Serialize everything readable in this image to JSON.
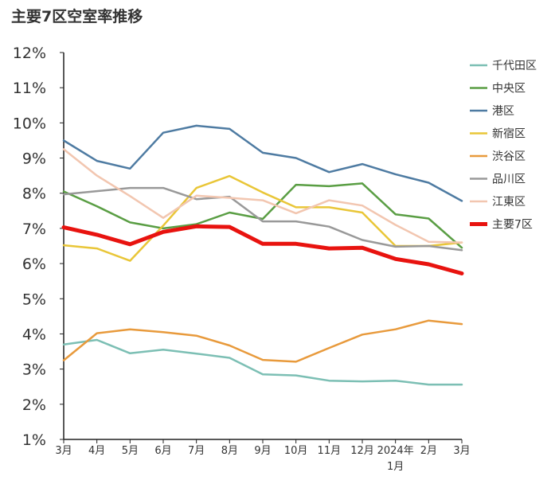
{
  "chart_data": {
    "type": "line",
    "title": "主要7区空室率推移",
    "categories": [
      "3月",
      "4月",
      "5月",
      "6月",
      "7月",
      "8月",
      "9月",
      "10月",
      "11月",
      "12月",
      "2024年\n1月",
      "2月",
      "3月"
    ],
    "ylim": [
      1,
      12
    ],
    "yticks": [
      "1%",
      "2%",
      "3%",
      "4%",
      "5%",
      "6%",
      "7%",
      "8%",
      "9%",
      "10%",
      "11%",
      "12%"
    ],
    "grid": false,
    "legend_position": "right",
    "series": [
      {
        "name": "千代田区",
        "color": "#7cbfb4",
        "values": [
          3.7,
          3.83,
          3.45,
          3.55,
          3.44,
          3.32,
          2.85,
          2.82,
          2.67,
          2.65,
          2.67,
          2.56,
          2.56
        ]
      },
      {
        "name": "中央区",
        "color": "#5a9e44",
        "values": [
          8.05,
          7.63,
          7.17,
          7.0,
          7.12,
          7.45,
          7.27,
          8.24,
          8.2,
          8.28,
          7.4,
          7.28,
          6.45
        ]
      },
      {
        "name": "港区",
        "color": "#4e7ba2",
        "values": [
          9.5,
          8.92,
          8.7,
          9.72,
          9.92,
          9.83,
          9.15,
          9.0,
          8.6,
          8.83,
          8.54,
          8.3,
          7.78
        ]
      },
      {
        "name": "新宿区",
        "color": "#e9c638",
        "values": [
          6.52,
          6.43,
          6.08,
          7.08,
          8.15,
          8.49,
          8.02,
          7.6,
          7.6,
          7.45,
          6.5,
          6.5,
          6.6
        ]
      },
      {
        "name": "渋谷区",
        "color": "#e89a3c",
        "values": [
          3.25,
          4.02,
          4.13,
          4.05,
          3.95,
          3.67,
          3.26,
          3.21,
          3.6,
          3.98,
          4.13,
          4.38,
          4.28
        ]
      },
      {
        "name": "品川区",
        "color": "#999999",
        "values": [
          7.97,
          8.06,
          8.15,
          8.15,
          7.83,
          7.9,
          7.2,
          7.2,
          7.05,
          6.67,
          6.48,
          6.5,
          6.38
        ]
      },
      {
        "name": "江東区",
        "color": "#f2c6b0",
        "values": [
          9.25,
          8.5,
          7.92,
          7.3,
          7.93,
          7.87,
          7.8,
          7.43,
          7.8,
          7.65,
          7.1,
          6.62,
          6.6
        ]
      },
      {
        "name": "主要7区",
        "color": "#e8130f",
        "values": [
          7.03,
          6.82,
          6.55,
          6.9,
          7.06,
          7.04,
          6.56,
          6.56,
          6.43,
          6.45,
          6.13,
          5.98,
          5.72
        ]
      }
    ]
  }
}
